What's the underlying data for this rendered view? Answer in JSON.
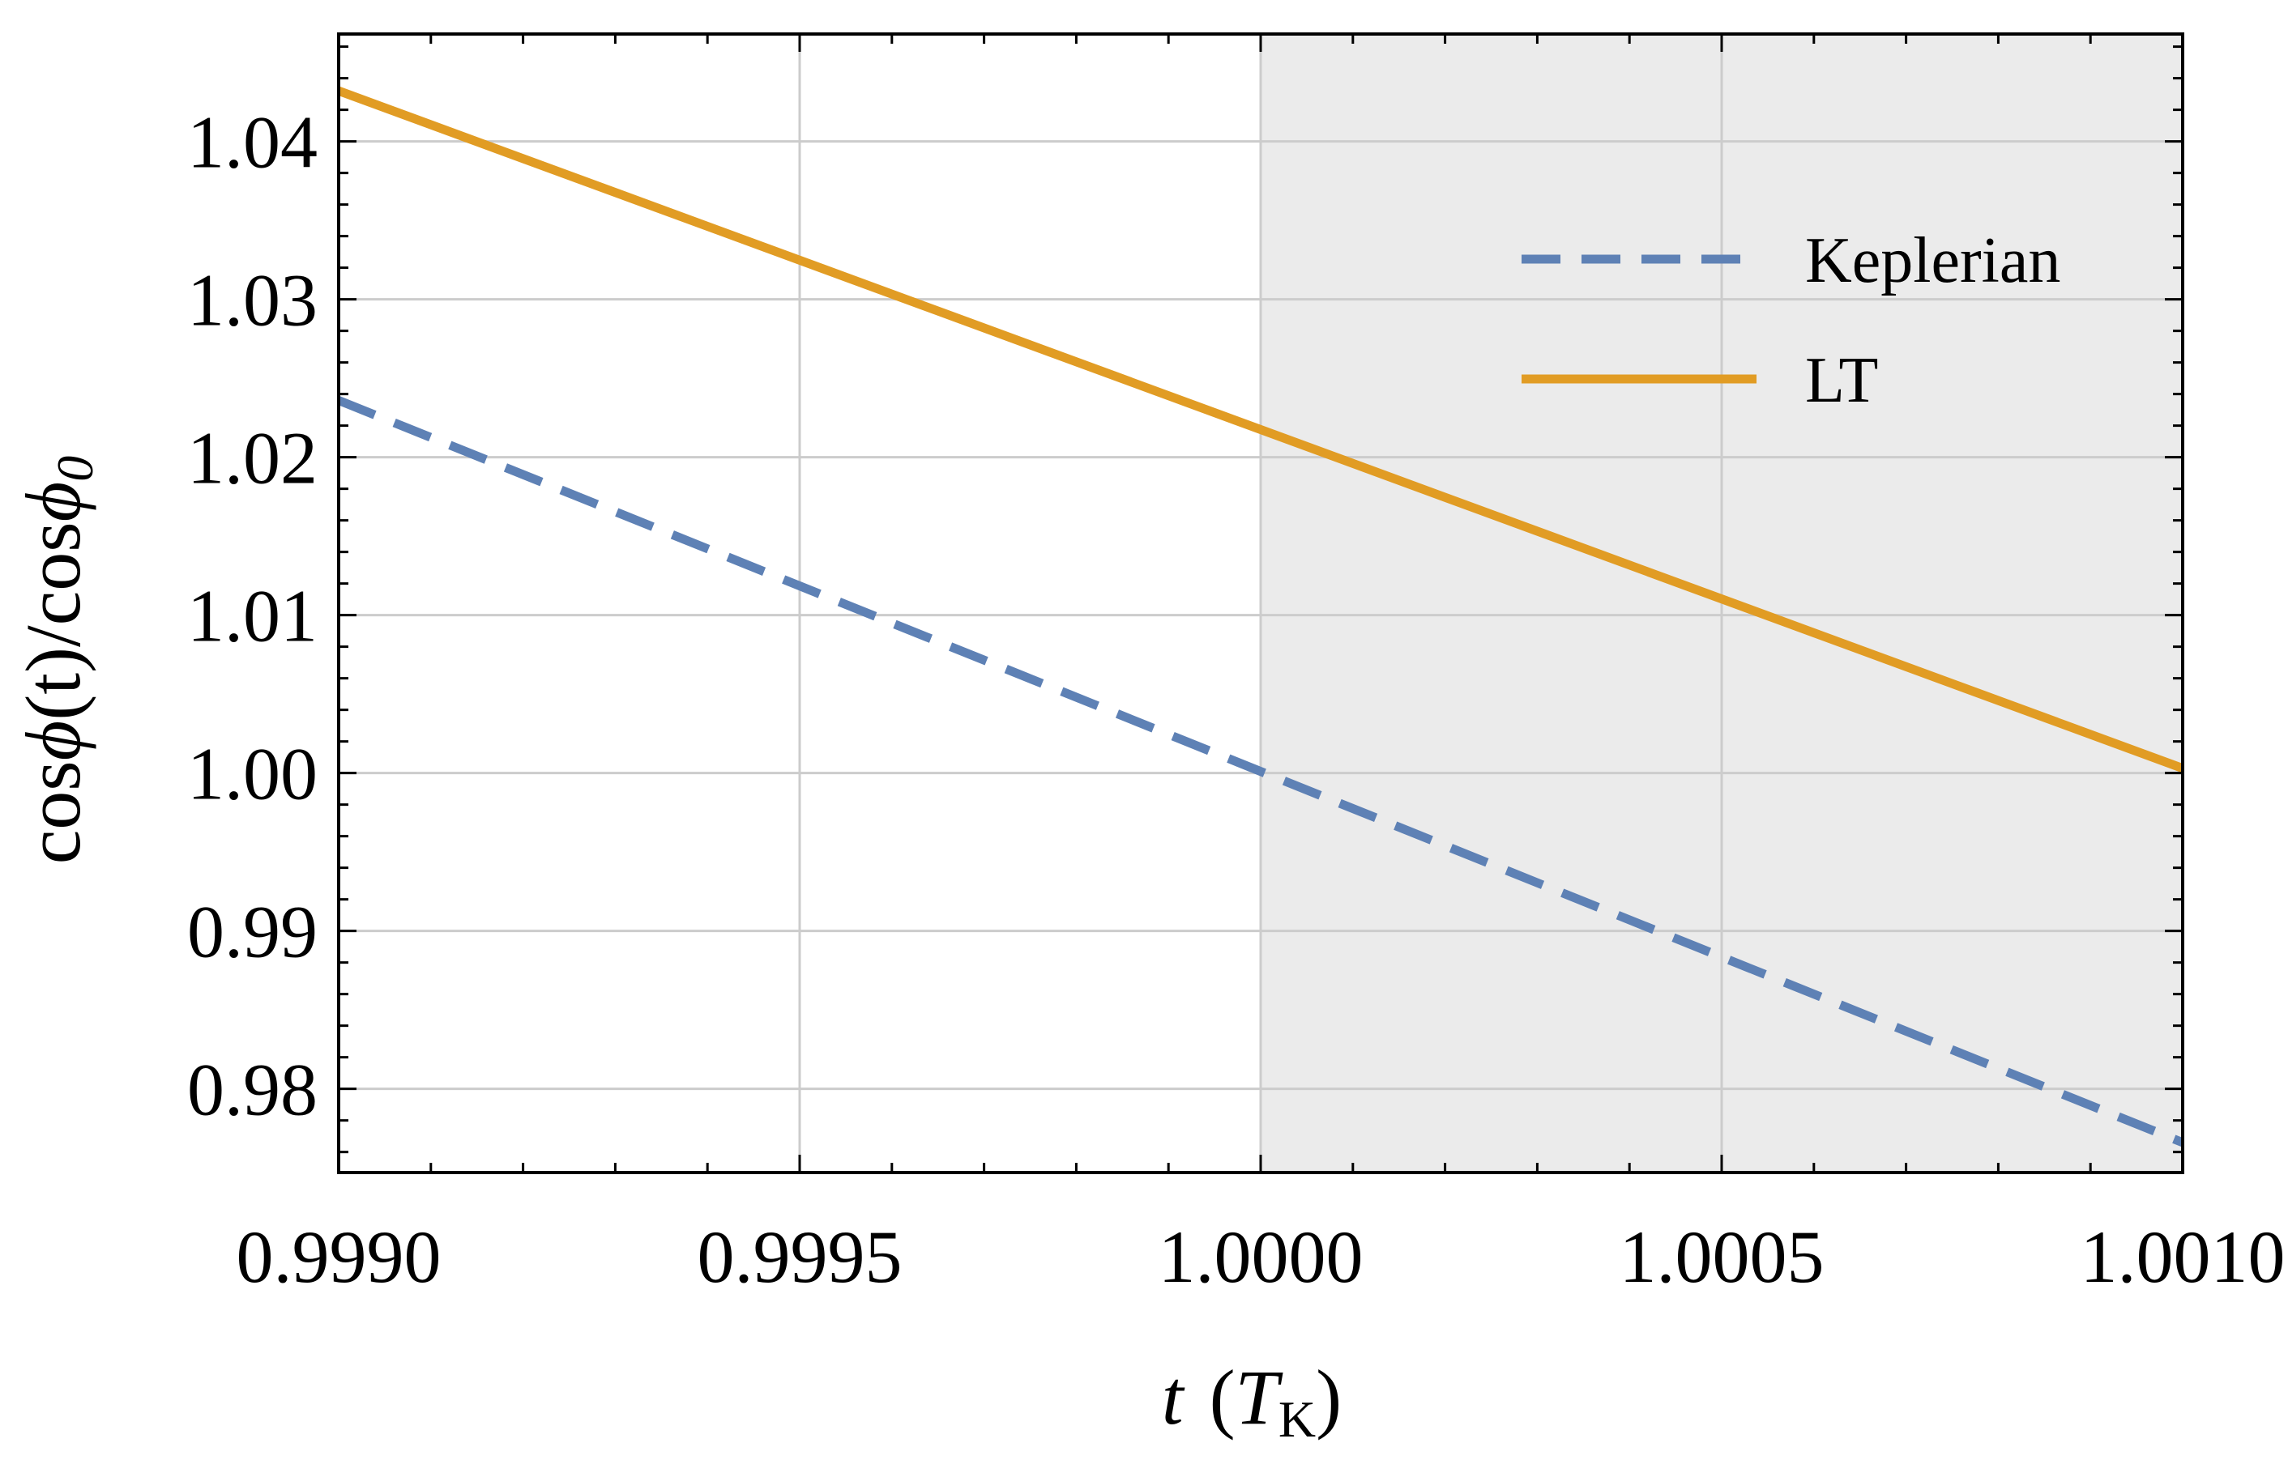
{
  "chart_data": {
    "type": "line",
    "title": "",
    "xlabel": {
      "var": "t",
      "unit_open": "(",
      "unit_var": "T",
      "unit_sub": "K",
      "unit_close": ")"
    },
    "ylabel": {
      "cos1": "cos",
      "phi1": "ϕ",
      "arg": "(t)",
      "slash": "/",
      "cos2": "cos",
      "phi2": "ϕ",
      "sub": "0"
    },
    "xlim": [
      0.999,
      1.001
    ],
    "ylim": [
      0.9747,
      1.0468
    ],
    "x_ticks": [
      {
        "value": 0.999,
        "label": "0.9990"
      },
      {
        "value": 0.9995,
        "label": "0.9995"
      },
      {
        "value": 1.0,
        "label": "1.0000"
      },
      {
        "value": 1.0005,
        "label": "1.0005"
      },
      {
        "value": 1.001,
        "label": "1.0010"
      }
    ],
    "y_ticks": [
      {
        "value": 0.98,
        "label": "0.98"
      },
      {
        "value": 0.99,
        "label": "0.99"
      },
      {
        "value": 1.0,
        "label": "1.00"
      },
      {
        "value": 1.01,
        "label": "1.01"
      },
      {
        "value": 1.02,
        "label": "1.02"
      },
      {
        "value": 1.03,
        "label": "1.03"
      },
      {
        "value": 1.04,
        "label": "1.04"
      }
    ],
    "x_minor_step": 0.0001,
    "y_minor_step": 0.002,
    "grid": true,
    "shaded_region": {
      "x_start": 1.0,
      "x_end": 1.001,
      "color": "#ebebeb"
    },
    "legend_position": "top-right",
    "series": [
      {
        "name": "Keplerian",
        "style": "dashed",
        "color": "#5e81b5",
        "x": [
          0.999,
          1.001
        ],
        "y": [
          1.0236,
          0.9766
        ]
      },
      {
        "name": "LT",
        "style": "solid",
        "color": "#e19c24",
        "x": [
          0.999,
          1.001
        ],
        "y": [
          1.0432,
          1.0003
        ]
      }
    ],
    "colors": {
      "grid": "#cccccc",
      "axis": "#000000",
      "shade": "#ebebeb"
    }
  }
}
